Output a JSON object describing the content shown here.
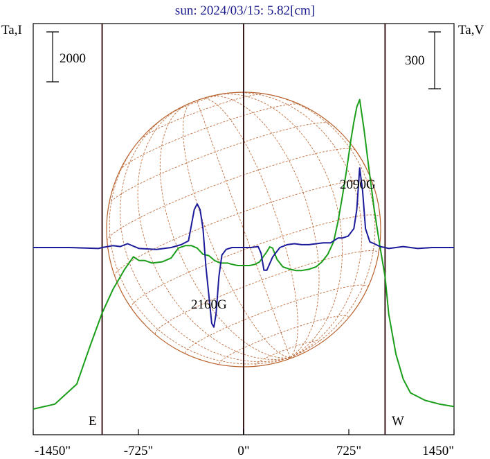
{
  "chart_data": {
    "type": "line",
    "title": "sun: 2024/03/15: 5.82[cm]",
    "left_axis_label": "Ta,I",
    "right_axis_label": "Ta,V",
    "x_ticks": [
      {
        "value": -1450,
        "label": "-1450\""
      },
      {
        "value": -725,
        "label": "-725\""
      },
      {
        "value": 0,
        "label": "0\""
      },
      {
        "value": 725,
        "label": "725\""
      },
      {
        "value": 1450,
        "label": "1450\""
      }
    ],
    "xlim": [
      -1450,
      1450
    ],
    "limb_markers": [
      {
        "label": "E",
        "x": -975
      },
      {
        "label": "W",
        "x": 975
      }
    ],
    "scale_bars": [
      {
        "label": "2000",
        "side": "left"
      },
      {
        "label": "300",
        "side": "right"
      }
    ],
    "annotations": [
      {
        "label": "2160G",
        "x": -205,
        "y_v": -420
      },
      {
        "label": "2090G",
        "x": 800,
        "y_v": 400
      }
    ],
    "series": [
      {
        "name": "I",
        "color": "#1a9e1a",
        "axis": "left",
        "x": [
          -1450,
          -1300,
          -1150,
          -1060,
          -975,
          -900,
          -820,
          -760,
          -720,
          -680,
          -630,
          -560,
          -500,
          -450,
          -400,
          -360,
          -320,
          -280,
          -240,
          -200,
          -160,
          -110,
          -80,
          -40,
          0,
          40,
          80,
          110,
          160,
          180,
          200,
          230,
          270,
          320,
          360,
          400,
          450,
          500,
          540,
          580,
          620,
          650,
          680,
          710,
          740,
          760,
          780,
          800,
          830,
          860,
          900,
          940,
          975,
          1000,
          1050,
          1100,
          1150,
          1250,
          1350,
          1450
        ],
        "y": [
          0,
          200,
          1000,
          2500,
          3850,
          4800,
          5600,
          6100,
          5950,
          5950,
          5850,
          5900,
          6050,
          6450,
          6550,
          6550,
          6450,
          6200,
          6150,
          5950,
          5850,
          5850,
          5800,
          5750,
          5750,
          5750,
          5800,
          5900,
          6300,
          6500,
          6450,
          6000,
          5700,
          5600,
          5550,
          5550,
          5600,
          5700,
          5900,
          6200,
          6700,
          7500,
          8500,
          9600,
          10800,
          11500,
          12100,
          12400,
          11200,
          9800,
          8000,
          6500,
          5300,
          3800,
          2200,
          1200,
          650,
          350,
          200,
          100
        ]
      },
      {
        "name": "V",
        "color": "#1a1a9a",
        "axis": "right",
        "x": [
          -1450,
          -1200,
          -1000,
          -975,
          -900,
          -850,
          -800,
          -720,
          -600,
          -500,
          -430,
          -380,
          -340,
          -320,
          -300,
          -280,
          -260,
          -240,
          -220,
          -205,
          -190,
          -170,
          -150,
          -120,
          -80,
          -40,
          0,
          50,
          100,
          120,
          140,
          160,
          200,
          250,
          300,
          350,
          400,
          450,
          500,
          550,
          600,
          620,
          650,
          680,
          720,
          760,
          780,
          800,
          820,
          840,
          870,
          900,
          940,
          975,
          1000,
          1050,
          1100,
          1150,
          1200,
          1300,
          1450
        ],
        "y": [
          0,
          0,
          -5,
          0,
          10,
          5,
          20,
          -5,
          -10,
          0,
          15,
          35,
          200,
          230,
          200,
          100,
          -100,
          -250,
          -400,
          -420,
          -350,
          -150,
          -40,
          -10,
          0,
          0,
          0,
          0,
          5,
          -30,
          -120,
          -120,
          -50,
          0,
          15,
          20,
          15,
          15,
          20,
          25,
          25,
          35,
          50,
          50,
          60,
          100,
          200,
          420,
          300,
          100,
          30,
          20,
          5,
          0,
          -5,
          0,
          5,
          0,
          -5,
          0,
          0
        ]
      }
    ]
  },
  "legend_labels": {
    "east": "E",
    "west": "W"
  }
}
